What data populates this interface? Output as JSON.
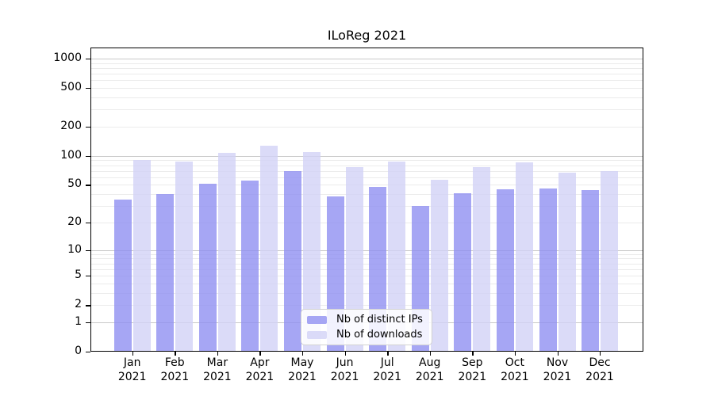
{
  "chart_data": {
    "type": "bar",
    "title": "ILoReg 2021",
    "year_label": "2021",
    "categories": [
      "Jan",
      "Feb",
      "Mar",
      "Apr",
      "May",
      "Jun",
      "Jul",
      "Aug",
      "Sep",
      "Oct",
      "Nov",
      "Dec"
    ],
    "series": [
      {
        "name": "Nb of distinct IPs",
        "color_key": "ips",
        "values": [
          35,
          40,
          51,
          56,
          70,
          38,
          48,
          30,
          41,
          45,
          46,
          44
        ]
      },
      {
        "name": "Nb of downloads",
        "color_key": "downloads",
        "values": [
          90,
          88,
          107,
          127,
          110,
          76,
          88,
          57,
          76,
          85,
          67,
          70
        ]
      }
    ],
    "yscale": "symlog",
    "ylim": [
      0,
      1300
    ],
    "y_labeled_ticks": [
      0,
      1,
      2,
      5,
      10,
      20,
      50,
      100,
      200,
      500,
      1000
    ],
    "y_major_gridlines": [
      1,
      10,
      100,
      1000
    ],
    "y_minor_gridlines": [
      2,
      3,
      4,
      5,
      6,
      7,
      8,
      9,
      20,
      30,
      40,
      50,
      60,
      70,
      80,
      90,
      200,
      300,
      400,
      500,
      600,
      700,
      800,
      900
    ],
    "grid": true,
    "legend_position": "bottom-center"
  },
  "colors": {
    "ips": "rgba(144,144,241,0.8)",
    "downloads": "rgba(210,210,246,0.8)",
    "grid_major": "#c9c9c9",
    "grid_minor": "#ebebeb",
    "axis_border": "#000000",
    "background": "#ffffff"
  }
}
